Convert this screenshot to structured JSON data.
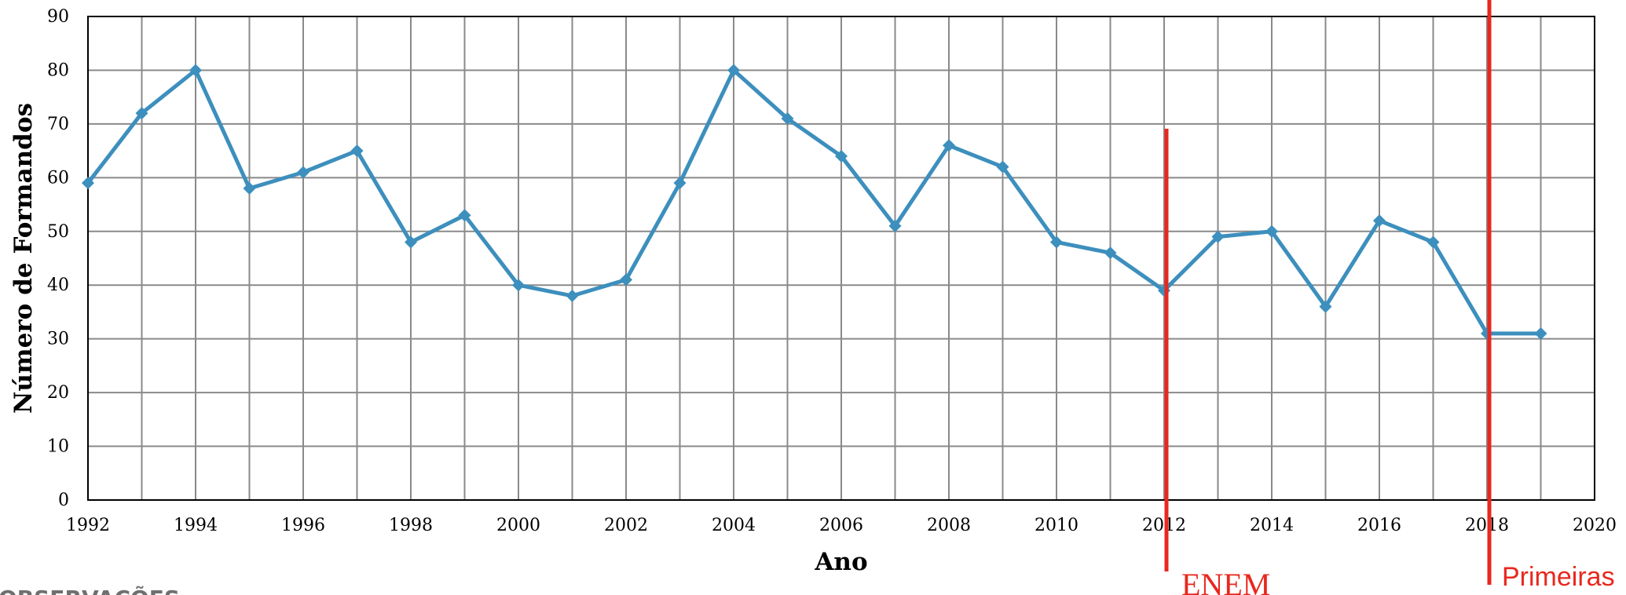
{
  "chart_data": {
    "type": "line",
    "xlabel": "Ano",
    "ylabel": "Número de Formandos",
    "xlim": [
      1992,
      2020
    ],
    "ylim": [
      0,
      90
    ],
    "x_ticks": [
      1992,
      1994,
      1996,
      1998,
      2000,
      2002,
      2004,
      2006,
      2008,
      2010,
      2012,
      2014,
      2016,
      2018,
      2020
    ],
    "y_ticks": [
      0,
      10,
      20,
      30,
      40,
      50,
      60,
      70,
      80,
      90
    ],
    "grid": true,
    "series": [
      {
        "color": "#3d8fbd",
        "marker": "diamond",
        "x": [
          1992,
          1993,
          1994,
          1995,
          1996,
          1997,
          1998,
          1999,
          2000,
          2001,
          2002,
          2003,
          2004,
          2005,
          2006,
          2007,
          2008,
          2009,
          2010,
          2011,
          2012,
          2013,
          2014,
          2015,
          2016,
          2017,
          2018,
          2019
        ],
        "values": [
          59,
          72,
          80,
          58,
          61,
          65,
          48,
          53,
          40,
          38,
          41,
          59,
          80,
          71,
          64,
          51,
          66,
          62,
          48,
          46,
          39,
          49,
          50,
          36,
          52,
          48,
          31,
          31
        ]
      }
    ],
    "annotations": [
      {
        "label": "ENEM",
        "x": 2012,
        "color": "#e8281e"
      },
      {
        "label": "Primeiras",
        "x": 2018,
        "color": "#e8281e"
      }
    ]
  },
  "footer_text": "OBSERVAÇÕES"
}
